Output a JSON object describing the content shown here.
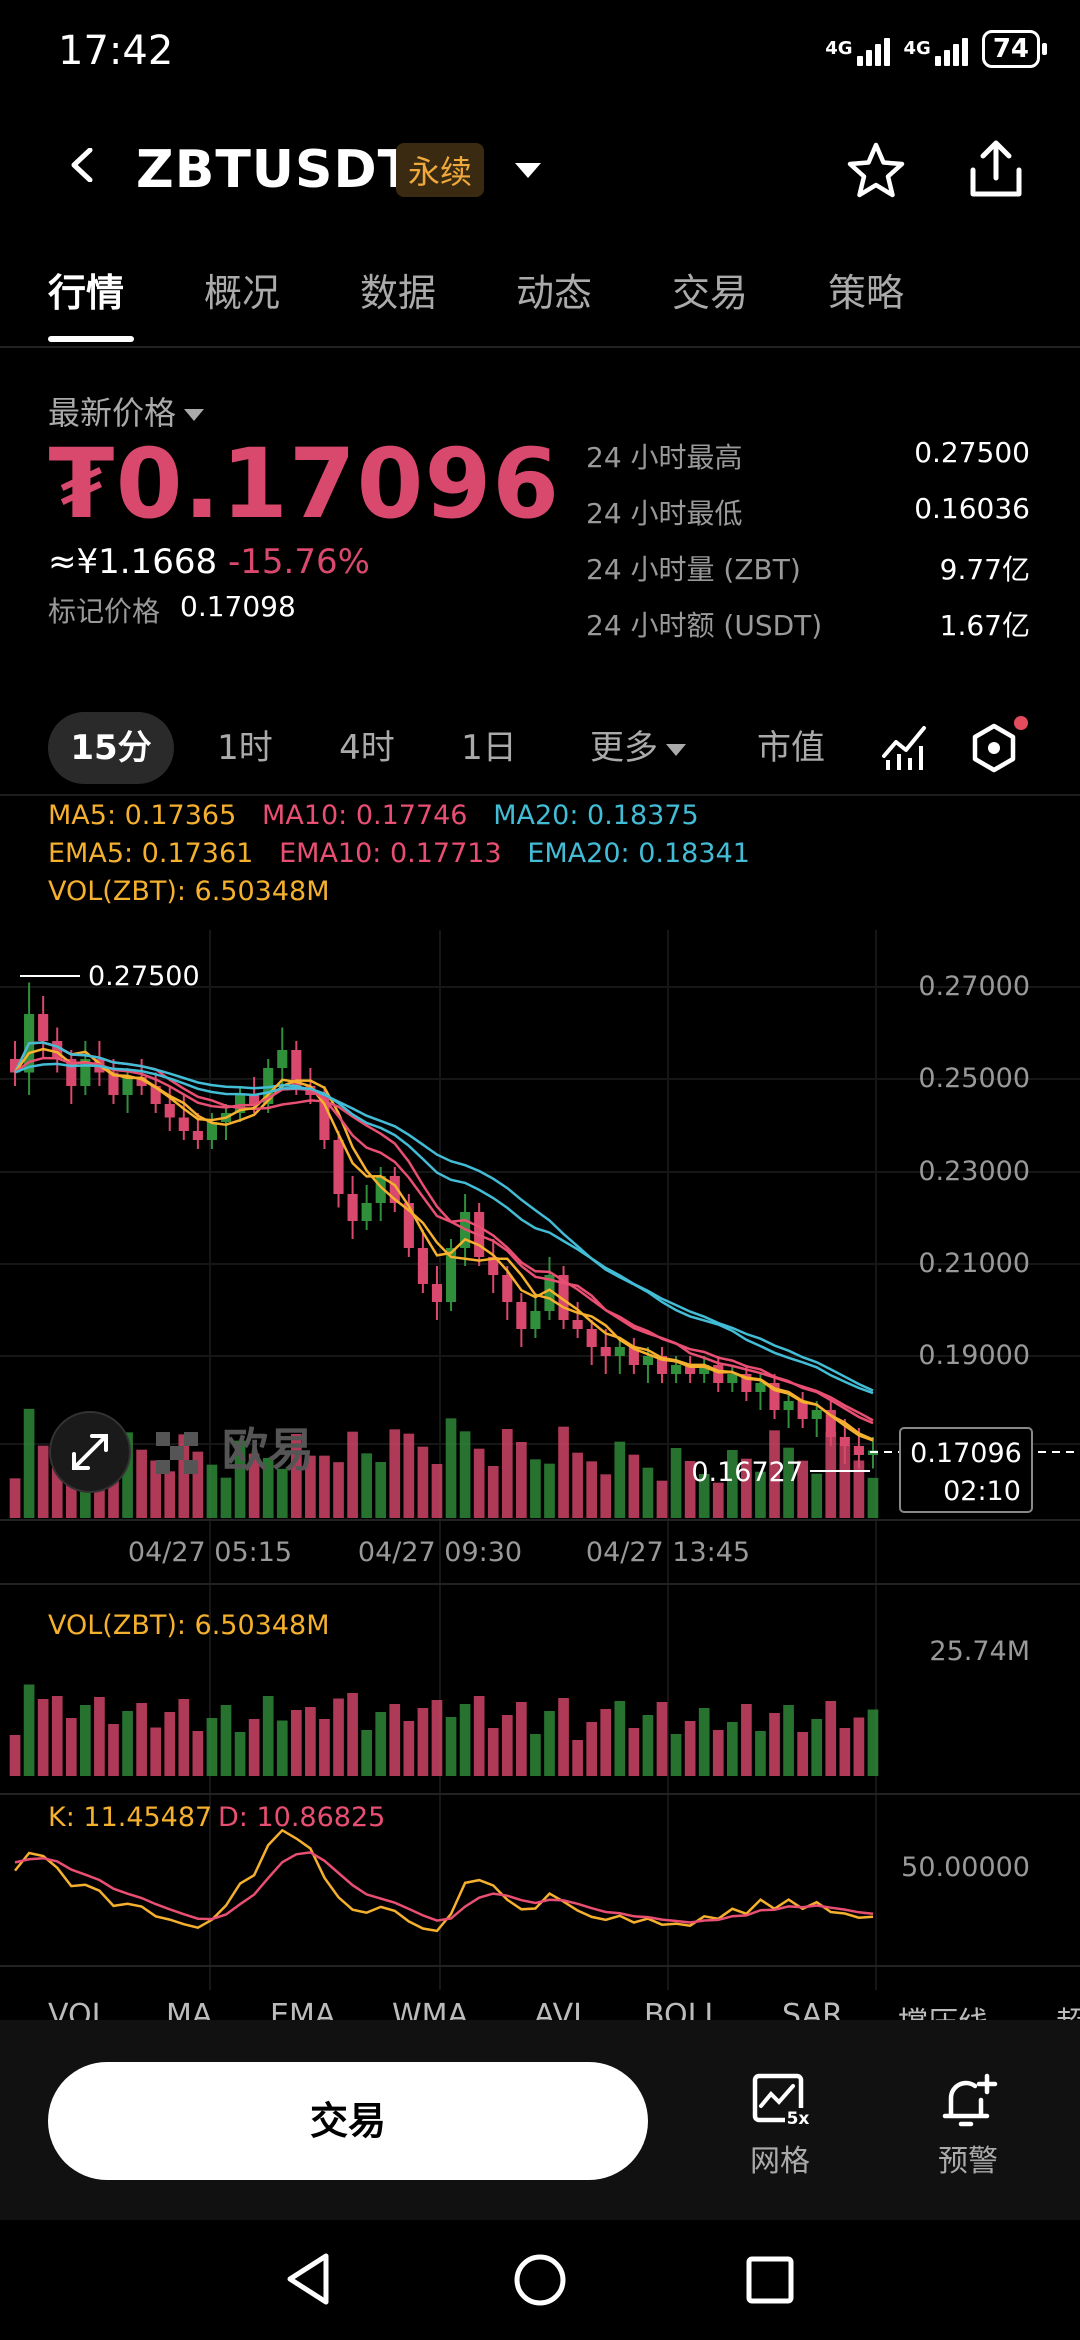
{
  "status": {
    "time": "17:42",
    "net1": "4G",
    "net2": "4G",
    "battery": "74"
  },
  "header": {
    "pair": "ZBTUSDT",
    "badge": "永续"
  },
  "tabs": [
    "行情",
    "概况",
    "数据",
    "动态",
    "交易",
    "策略"
  ],
  "price": {
    "label": "最新价格",
    "last": "₮0.17096",
    "cny": "≈¥1.1668",
    "change": "-15.76%",
    "mark_label": "标记价格",
    "mark": "0.17098"
  },
  "stats": [
    {
      "label": "24 小时最高",
      "value": "0.27500"
    },
    {
      "label": "24 小时最低",
      "value": "0.16036"
    },
    {
      "label": "24 小时量 (ZBT)",
      "value": "9.77亿"
    },
    {
      "label": "24 小时额 (USDT)",
      "value": "1.67亿"
    }
  ],
  "intervals": [
    "15分",
    "1时",
    "4时",
    "1日",
    "更多",
    "市值"
  ],
  "indicators": {
    "ma5": "MA5: 0.17365",
    "ma10": "MA10: 0.17746",
    "ma20": "MA20: 0.18375",
    "ema5": "EMA5: 0.17361",
    "ema10": "EMA10: 0.17713",
    "ema20": "EMA20: 0.18341",
    "vol": "VOL(ZBT): 6.50348M"
  },
  "main_chart": {
    "y_ticks": [
      "0.27000",
      "0.25000",
      "0.23000",
      "0.21000",
      "0.19000"
    ],
    "high_marker": "0.27500",
    "low_marker": "0.16727",
    "last_tag": "0.17096",
    "countdown": "02:10",
    "x_ticks": [
      "04/27 05:15",
      "04/27 09:30",
      "04/27 13:45"
    ],
    "watermark": "欧易"
  },
  "vol_panel": {
    "label": "VOL(ZBT): 6.50348M",
    "max": "25.74M"
  },
  "kd_panel": {
    "k": "K: 11.45487",
    "d": "D: 10.86825",
    "level": "50.00000"
  },
  "indicator_tabs": [
    "VOL",
    "MA",
    "EMA",
    "WMA",
    "AVL",
    "BOLL",
    "SAR",
    "撑压线",
    "超"
  ],
  "bottom": {
    "trade": "交易",
    "grid": "网格",
    "alert": "预警",
    "grid_badge": "5x"
  },
  "colors": {
    "up": "#2f8f3a",
    "down": "#d9486d",
    "ma5": "#f5b02e",
    "ma10": "#e94f72",
    "ma20": "#43bcd6"
  },
  "chart_data": {
    "type": "candlestick",
    "interval": "15m",
    "ylim": [
      0.16,
      0.28
    ],
    "ohlc": [
      [
        0.258,
        0.262,
        0.252,
        0.255
      ],
      [
        0.255,
        0.275,
        0.25,
        0.268
      ],
      [
        0.268,
        0.272,
        0.258,
        0.262
      ],
      [
        0.262,
        0.265,
        0.255,
        0.258
      ],
      [
        0.258,
        0.26,
        0.248,
        0.252
      ],
      [
        0.252,
        0.262,
        0.25,
        0.258
      ],
      [
        0.258,
        0.262,
        0.252,
        0.255
      ],
      [
        0.255,
        0.258,
        0.248,
        0.25
      ],
      [
        0.25,
        0.256,
        0.246,
        0.254
      ],
      [
        0.254,
        0.258,
        0.25,
        0.252
      ],
      [
        0.252,
        0.255,
        0.246,
        0.248
      ],
      [
        0.248,
        0.252,
        0.242,
        0.245
      ],
      [
        0.245,
        0.25,
        0.24,
        0.242
      ],
      [
        0.242,
        0.246,
        0.238,
        0.24
      ],
      [
        0.24,
        0.246,
        0.238,
        0.244
      ],
      [
        0.244,
        0.248,
        0.24,
        0.246
      ],
      [
        0.246,
        0.252,
        0.244,
        0.25
      ],
      [
        0.25,
        0.254,
        0.246,
        0.248
      ],
      [
        0.248,
        0.258,
        0.246,
        0.256
      ],
      [
        0.256,
        0.265,
        0.252,
        0.26
      ],
      [
        0.26,
        0.262,
        0.25,
        0.252
      ],
      [
        0.252,
        0.256,
        0.248,
        0.25
      ],
      [
        0.25,
        0.252,
        0.238,
        0.24
      ],
      [
        0.24,
        0.242,
        0.225,
        0.228
      ],
      [
        0.228,
        0.232,
        0.218,
        0.222
      ],
      [
        0.222,
        0.23,
        0.22,
        0.226
      ],
      [
        0.226,
        0.234,
        0.222,
        0.232
      ],
      [
        0.232,
        0.234,
        0.224,
        0.226
      ],
      [
        0.226,
        0.228,
        0.214,
        0.216
      ],
      [
        0.216,
        0.22,
        0.206,
        0.208
      ],
      [
        0.208,
        0.212,
        0.2,
        0.204
      ],
      [
        0.204,
        0.218,
        0.202,
        0.216
      ],
      [
        0.216,
        0.228,
        0.212,
        0.224
      ],
      [
        0.224,
        0.226,
        0.212,
        0.214
      ],
      [
        0.214,
        0.218,
        0.206,
        0.21
      ],
      [
        0.21,
        0.212,
        0.2,
        0.204
      ],
      [
        0.204,
        0.206,
        0.194,
        0.198
      ],
      [
        0.198,
        0.206,
        0.196,
        0.202
      ],
      [
        0.202,
        0.214,
        0.2,
        0.21
      ],
      [
        0.21,
        0.212,
        0.198,
        0.2
      ],
      [
        0.2,
        0.204,
        0.196,
        0.198
      ],
      [
        0.198,
        0.2,
        0.19,
        0.194
      ],
      [
        0.194,
        0.198,
        0.188,
        0.192
      ],
      [
        0.192,
        0.196,
        0.188,
        0.194
      ],
      [
        0.194,
        0.196,
        0.188,
        0.19
      ],
      [
        0.19,
        0.194,
        0.186,
        0.192
      ],
      [
        0.192,
        0.194,
        0.186,
        0.188
      ],
      [
        0.188,
        0.192,
        0.186,
        0.19
      ],
      [
        0.19,
        0.192,
        0.186,
        0.188
      ],
      [
        0.188,
        0.192,
        0.186,
        0.19
      ],
      [
        0.19,
        0.192,
        0.184,
        0.186
      ],
      [
        0.186,
        0.19,
        0.184,
        0.188
      ],
      [
        0.188,
        0.19,
        0.182,
        0.184
      ],
      [
        0.184,
        0.188,
        0.18,
        0.186
      ],
      [
        0.186,
        0.188,
        0.178,
        0.18
      ],
      [
        0.18,
        0.184,
        0.176,
        0.182
      ],
      [
        0.182,
        0.184,
        0.176,
        0.178
      ],
      [
        0.178,
        0.182,
        0.174,
        0.18
      ],
      [
        0.18,
        0.182,
        0.172,
        0.174
      ],
      [
        0.174,
        0.178,
        0.168,
        0.172
      ],
      [
        0.172,
        0.176,
        0.167,
        0.17
      ],
      [
        0.17,
        0.174,
        0.167,
        0.171
      ]
    ]
  }
}
